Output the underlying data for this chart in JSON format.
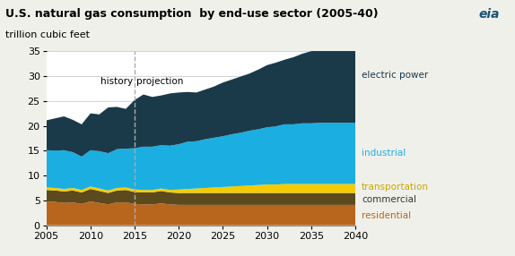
{
  "title": "U.S. natural gas consumption  by end-use sector (2005-40)",
  "ylabel": "trillion cubic feet",
  "years": [
    2005,
    2006,
    2007,
    2008,
    2009,
    2010,
    2011,
    2012,
    2013,
    2014,
    2015,
    2016,
    2017,
    2018,
    2019,
    2020,
    2021,
    2022,
    2023,
    2024,
    2025,
    2026,
    2027,
    2028,
    2029,
    2030,
    2031,
    2032,
    2033,
    2034,
    2035,
    2036,
    2037,
    2038,
    2039,
    2040
  ],
  "residential": [
    4.8,
    4.7,
    4.5,
    4.6,
    4.3,
    4.8,
    4.5,
    4.2,
    4.6,
    4.6,
    4.3,
    4.2,
    4.2,
    4.4,
    4.2,
    4.1,
    4.1,
    4.1,
    4.1,
    4.1,
    4.1,
    4.1,
    4.1,
    4.1,
    4.1,
    4.1,
    4.1,
    4.1,
    4.1,
    4.1,
    4.1,
    4.1,
    4.1,
    4.1,
    4.1,
    4.1
  ],
  "commercial": [
    2.3,
    2.3,
    2.3,
    2.4,
    2.3,
    2.5,
    2.4,
    2.3,
    2.4,
    2.5,
    2.4,
    2.4,
    2.4,
    2.5,
    2.4,
    2.4,
    2.4,
    2.4,
    2.4,
    2.4,
    2.4,
    2.4,
    2.4,
    2.4,
    2.4,
    2.4,
    2.4,
    2.4,
    2.4,
    2.4,
    2.4,
    2.4,
    2.4,
    2.4,
    2.4,
    2.4
  ],
  "transportation": [
    0.5,
    0.5,
    0.5,
    0.5,
    0.5,
    0.5,
    0.5,
    0.5,
    0.5,
    0.5,
    0.5,
    0.5,
    0.5,
    0.5,
    0.5,
    0.7,
    0.8,
    0.9,
    1.0,
    1.1,
    1.2,
    1.3,
    1.4,
    1.5,
    1.6,
    1.7,
    1.7,
    1.8,
    1.8,
    1.8,
    1.8,
    1.8,
    1.8,
    1.8,
    1.8,
    1.8
  ],
  "industrial": [
    7.5,
    7.5,
    7.8,
    7.2,
    6.7,
    7.3,
    7.5,
    7.5,
    7.8,
    7.8,
    8.3,
    8.7,
    8.7,
    8.7,
    8.9,
    9.1,
    9.5,
    9.5,
    9.8,
    10.0,
    10.2,
    10.5,
    10.7,
    11.0,
    11.2,
    11.5,
    11.7,
    12.0,
    12.0,
    12.2,
    12.2,
    12.3,
    12.3,
    12.3,
    12.3,
    12.3
  ],
  "electric_power": [
    6.0,
    6.5,
    6.8,
    6.5,
    6.5,
    7.4,
    7.4,
    9.2,
    8.5,
    8.0,
    9.7,
    10.5,
    10.0,
    10.0,
    10.5,
    10.4,
    10.0,
    9.8,
    10.0,
    10.3,
    10.8,
    11.0,
    11.3,
    11.5,
    12.0,
    12.5,
    12.8,
    13.0,
    13.5,
    14.0,
    14.5,
    15.0,
    15.3,
    15.5,
    15.8,
    16.0
  ],
  "colors": {
    "residential": "#b8651e",
    "commercial": "#5c4a1e",
    "transportation": "#f5cc00",
    "industrial": "#1aafe0",
    "electric_power": "#1a3a4a"
  },
  "label_colors": {
    "electric_power": "#1a3a4a",
    "industrial": "#1aafe0",
    "transportation": "#c8a800",
    "commercial": "#333333",
    "residential": "#b8651e"
  },
  "dashed_line_x": 2015,
  "ylim": [
    0,
    35
  ],
  "xlim": [
    2005,
    2040
  ],
  "xticks": [
    2005,
    2010,
    2015,
    2020,
    2025,
    2030,
    2035,
    2040
  ],
  "yticks": [
    0,
    5,
    10,
    15,
    20,
    25,
    30,
    35
  ],
  "history_label": "history",
  "projection_label": "projection",
  "legend_labels": {
    "electric_power": "electric power",
    "industrial": "industrial",
    "transportation": "transportation",
    "commercial": "commercial",
    "residential": "residential"
  },
  "background_color": "#ffffff",
  "outer_background": "#f0f0eb",
  "title_fontsize": 9,
  "ylabel_fontsize": 8,
  "tick_fontsize": 8,
  "grid_color": "#cccccc"
}
